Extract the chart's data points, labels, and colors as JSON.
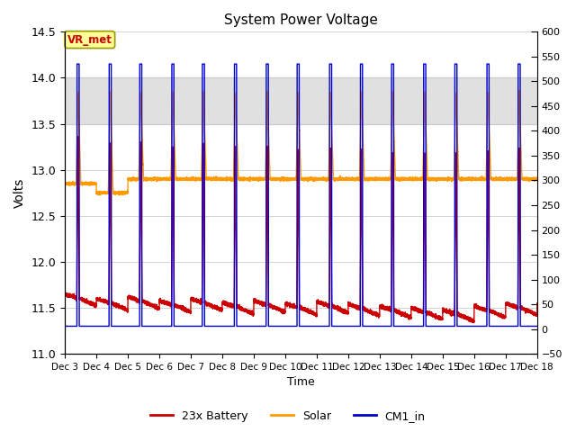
{
  "title": "System Power Voltage",
  "xlabel": "Time",
  "ylabel": "Volts",
  "ylim_left": [
    11.0,
    14.5
  ],
  "ylim_right": [
    -50,
    600
  ],
  "yticks_left": [
    11.0,
    11.5,
    12.0,
    12.5,
    13.0,
    13.5,
    14.0,
    14.5
  ],
  "yticks_right": [
    -50,
    0,
    50,
    100,
    150,
    200,
    250,
    300,
    350,
    400,
    450,
    500,
    550,
    600
  ],
  "xtick_labels": [
    "Dec 3",
    "Dec 4",
    "Dec 5",
    "Dec 6",
    "Dec 7",
    "Dec 8",
    "Dec 9",
    "Dec 10",
    "Dec 11",
    "Dec 12",
    "Dec 13",
    "Dec 14",
    "Dec 15",
    "Dec 16",
    "Dec 17",
    "Dec 18"
  ],
  "xtick_positions": [
    3,
    4,
    5,
    6,
    7,
    8,
    9,
    10,
    11,
    12,
    13,
    14,
    15,
    16,
    17,
    18
  ],
  "legend_labels": [
    "23x Battery",
    "Solar",
    "CM1_in"
  ],
  "legend_colors": [
    "#cc0000",
    "#ff9900",
    "#0000cc"
  ],
  "line_colors": {
    "battery": "#cc0000",
    "solar": "#ff9900",
    "cm1": "#0000cc"
  },
  "annotation_text": "VR_met",
  "annotation_color": "#cc0000",
  "annotation_bg": "#ffff99",
  "annotation_border": "#999900",
  "shaded_band": [
    13.5,
    14.0
  ],
  "background_color": "#ffffff",
  "grid_color": "#cccccc",
  "figsize": [
    6.4,
    4.8
  ],
  "dpi": 100
}
